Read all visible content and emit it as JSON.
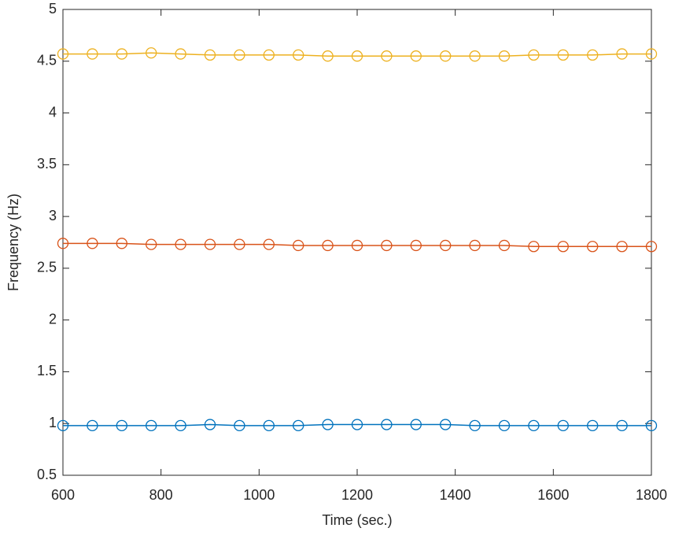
{
  "chart_data": {
    "type": "line",
    "xlabel": "Time (sec.)",
    "ylabel": "Frequency (Hz)",
    "x": [
      600,
      660,
      720,
      780,
      840,
      900,
      960,
      1020,
      1080,
      1140,
      1200,
      1260,
      1320,
      1380,
      1440,
      1500,
      1560,
      1620,
      1680,
      1740,
      1800
    ],
    "series": [
      {
        "color": "#0072bd",
        "values": [
          0.98,
          0.98,
          0.98,
          0.98,
          0.98,
          0.99,
          0.98,
          0.98,
          0.98,
          0.99,
          0.99,
          0.99,
          0.99,
          0.99,
          0.98,
          0.98,
          0.98,
          0.98,
          0.98,
          0.98,
          0.98
        ]
      },
      {
        "color": "#d95319",
        "values": [
          2.74,
          2.74,
          2.74,
          2.73,
          2.73,
          2.73,
          2.73,
          2.73,
          2.72,
          2.72,
          2.72,
          2.72,
          2.72,
          2.72,
          2.72,
          2.72,
          2.71,
          2.71,
          2.71,
          2.71,
          2.71
        ]
      },
      {
        "color": "#edb120",
        "values": [
          4.57,
          4.57,
          4.57,
          4.58,
          4.57,
          4.56,
          4.56,
          4.56,
          4.56,
          4.55,
          4.55,
          4.55,
          4.55,
          4.55,
          4.55,
          4.55,
          4.56,
          4.56,
          4.56,
          4.57,
          4.57
        ]
      }
    ],
    "xlim": [
      600,
      1800
    ],
    "xticks": [
      600,
      800,
      1000,
      1200,
      1400,
      1600,
      1800
    ],
    "ylim": [
      0.5,
      5
    ],
    "yticks": [
      0.5,
      1,
      1.5,
      2,
      2.5,
      3,
      3.5,
      4,
      4.5,
      5
    ],
    "grid": false,
    "marker": "circle"
  }
}
